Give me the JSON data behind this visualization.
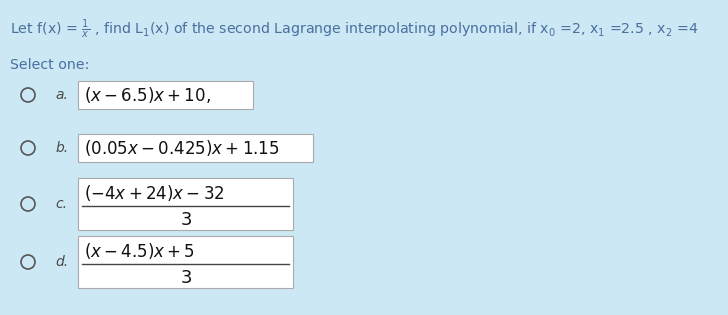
{
  "bg_color": "#cce8f4",
  "title_color": "#4a6fa0",
  "select_color": "#4a6fa0",
  "label_color": "#4a4a4a",
  "math_color": "#111111",
  "box_facecolor": "#ffffff",
  "box_edgecolor": "#aaaaaa",
  "circle_color": "#555555",
  "options": [
    {
      "label": "a.",
      "fraction": false,
      "math": "$(x - 6.5)x + 10,$"
    },
    {
      "label": "b.",
      "fraction": false,
      "math": "$(0.05x - 0.425)x + 1.15$"
    },
    {
      "label": "c.",
      "fraction": true,
      "numerator": "$(-4x + 24)x - 32$",
      "denominator": "$3$"
    },
    {
      "label": "d.",
      "fraction": true,
      "numerator": "$(x - 4.5)x + 5$",
      "denominator": "$3$"
    }
  ]
}
